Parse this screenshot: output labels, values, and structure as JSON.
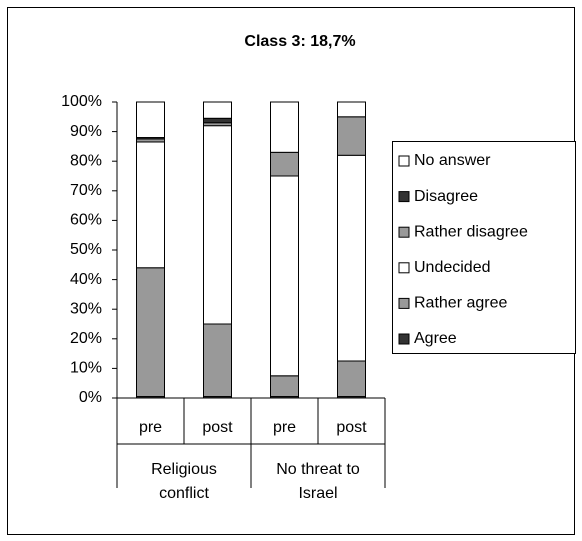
{
  "chart_data": {
    "type": "stacked_bar",
    "title": "Class 3: 18,7%",
    "categories": [
      "pre",
      "post",
      "pre",
      "post"
    ],
    "groups": [
      "Religious conflict",
      "No threat to Israel"
    ],
    "ylim": [
      0,
      100
    ],
    "yticks": [
      {
        "value": 0,
        "label": "0%"
      },
      {
        "value": 10,
        "label": "10%"
      },
      {
        "value": 20,
        "label": "20%"
      },
      {
        "value": 30,
        "label": "30%"
      },
      {
        "value": 40,
        "label": "40%"
      },
      {
        "value": 50,
        "label": "50%"
      },
      {
        "value": 60,
        "label": "60%"
      },
      {
        "value": 70,
        "label": "70%"
      },
      {
        "value": 80,
        "label": "80%"
      },
      {
        "value": 90,
        "label": "90%"
      },
      {
        "value": 100,
        "label": "100%"
      }
    ],
    "legend": "right",
    "series": [
      {
        "name": "Agree",
        "color": "#333333",
        "values": [
          0.5,
          0.5,
          0.5,
          0.5
        ]
      },
      {
        "name": "Rather agree",
        "color": "#999999",
        "values": [
          43.5,
          24.5,
          7,
          12
        ]
      },
      {
        "name": "Undecided",
        "color": "#ffffff",
        "values": [
          42.5,
          67,
          67.5,
          69.5
        ]
      },
      {
        "name": "Rather disagree",
        "color": "#999999",
        "values": [
          1,
          1,
          8,
          13
        ]
      },
      {
        "name": "Disagree",
        "color": "#333333",
        "values": [
          0.5,
          1.5,
          0,
          0
        ]
      },
      {
        "name": "No answer",
        "color": "#ffffff",
        "values": [
          12,
          5.5,
          17,
          5
        ]
      }
    ]
  }
}
